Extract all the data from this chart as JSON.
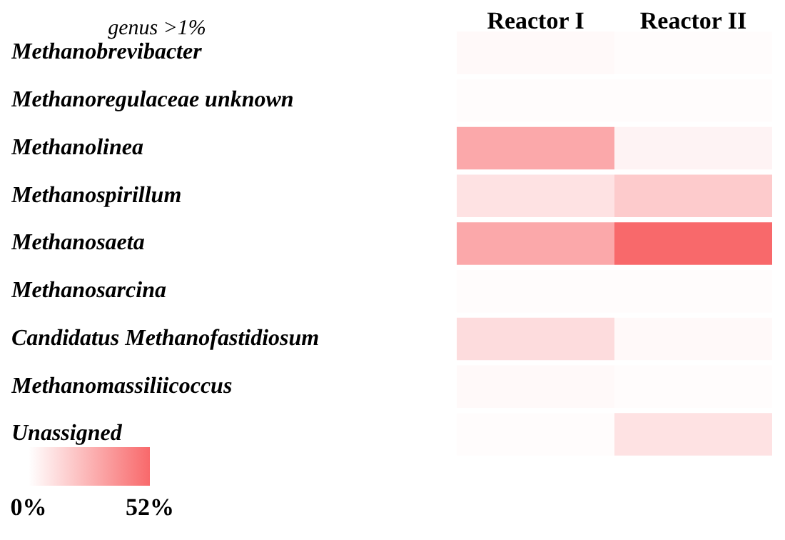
{
  "chart_data": {
    "type": "heatmap",
    "ylabel": "genus >1%",
    "categories": [
      "Reactor I",
      "Reactor II"
    ],
    "y_categories": [
      "Methanobrevibacter",
      "Methanoregulaceae unknown",
      "Methanolinea",
      "Methanospirillum",
      "Methanosaeta",
      "Methanosarcina",
      "Candidatus Methanofastidiosum",
      "Methanomassiliicoccus",
      "Unassigned"
    ],
    "cells": [
      [
        2,
        1
      ],
      [
        1,
        1
      ],
      [
        30,
        4
      ],
      [
        10,
        18
      ],
      [
        30,
        52
      ],
      [
        1,
        1
      ],
      [
        12,
        2
      ],
      [
        2,
        1
      ],
      [
        1,
        10
      ]
    ],
    "clim": [
      0,
      52
    ],
    "cticks": [
      {
        "value": 0,
        "label": "0%"
      },
      {
        "value": 52,
        "label": "52%"
      }
    ]
  }
}
